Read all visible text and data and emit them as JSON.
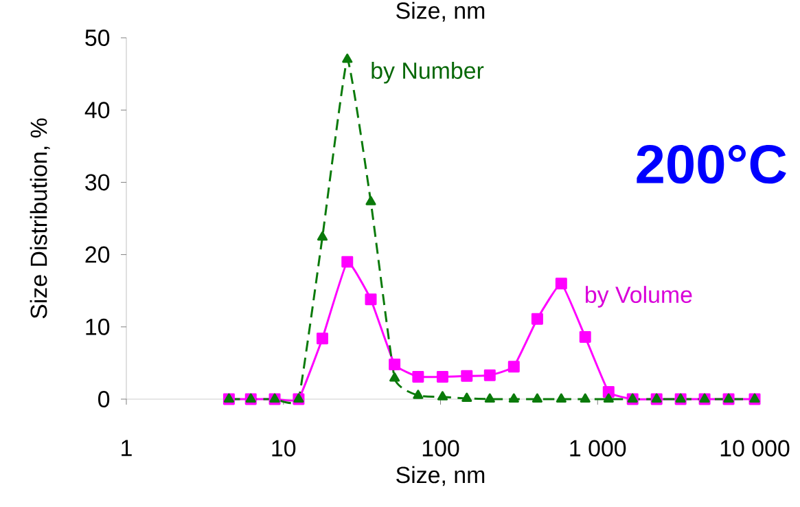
{
  "chart_data": {
    "type": "line",
    "title": "Size, nm",
    "xlabel": "Size, nm",
    "ylabel": "Size Distribution, %",
    "log": "x",
    "xlim": [
      1,
      10000
    ],
    "ylim": [
      0,
      50
    ],
    "xticks": [
      1,
      10,
      100,
      {
        "value": 1000,
        "label": "1 000"
      },
      {
        "value": 10000,
        "label": "10 000"
      }
    ],
    "yticks": [
      0,
      10,
      20,
      30,
      40,
      50
    ],
    "x": [
      4.5,
      6.2,
      8.8,
      12.5,
      17.7,
      25.5,
      36,
      51,
      72,
      103,
      147,
      206,
      293,
      413,
      587,
      834,
      1175,
      1670,
      2375,
      3377,
      4800,
      6825,
      10000
    ],
    "series": [
      {
        "name": "by Volume",
        "color": "#ff00ff",
        "marker": "square",
        "line_style": "solid",
        "values": [
          0,
          0,
          0,
          0,
          8.4,
          19,
          13.8,
          4.8,
          3.1,
          3.1,
          3.2,
          3.3,
          4.5,
          11.1,
          16,
          8.6,
          1,
          0,
          0,
          0,
          0,
          0,
          0
        ]
      },
      {
        "name": "by Number",
        "color": "#0a7a0a",
        "marker": "triangle",
        "line_style": "dashed",
        "values": [
          0,
          0,
          0,
          0,
          22.4,
          47,
          27.3,
          2.9,
          0.5,
          0.3,
          0.1,
          0,
          0,
          0,
          0,
          0,
          0,
          0,
          0,
          0,
          0,
          0,
          0
        ]
      }
    ],
    "annotations": [
      "200°C"
    ]
  }
}
